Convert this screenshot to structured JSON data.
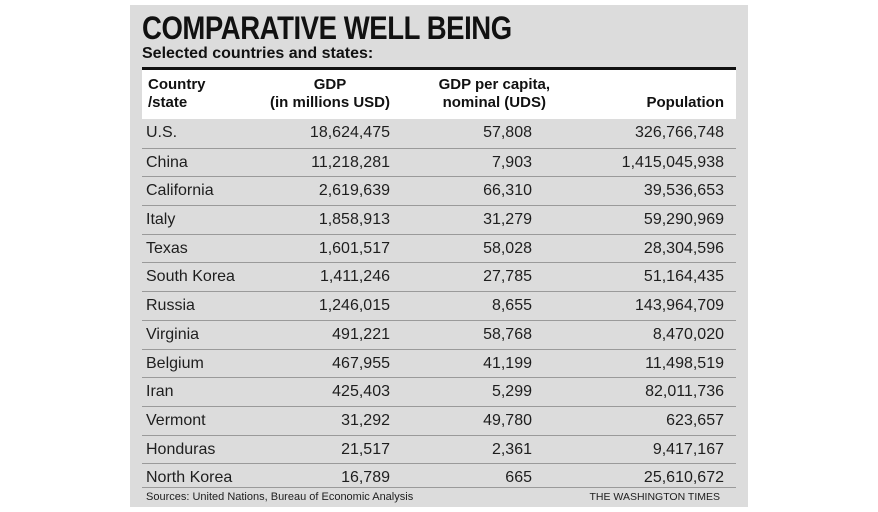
{
  "title": "COMPARATIVE WELL BEING",
  "subtitle": "Selected countries and states:",
  "columns": {
    "country": [
      "Country",
      "/state"
    ],
    "gdp": [
      "GDP",
      "(in millions USD)"
    ],
    "gdp_per_capita": [
      "GDP per capita,",
      "nominal (UDS)"
    ],
    "population": "Population"
  },
  "rows": [
    {
      "name": "U.S.",
      "gdp": "18,624,475",
      "gdp_per_capita": "57,808",
      "population": "326,766,748"
    },
    {
      "name": "China",
      "gdp": "11,218,281",
      "gdp_per_capita": "7,903",
      "population": "1,415,045,938"
    },
    {
      "name": "California",
      "gdp": "2,619,639",
      "gdp_per_capita": "66,310",
      "population": "39,536,653"
    },
    {
      "name": "Italy",
      "gdp": "1,858,913",
      "gdp_per_capita": "31,279",
      "population": "59,290,969"
    },
    {
      "name": "Texas",
      "gdp": "1,601,517",
      "gdp_per_capita": "58,028",
      "population": "28,304,596"
    },
    {
      "name": "South Korea",
      "gdp": "1,411,246",
      "gdp_per_capita": "27,785",
      "population": "51,164,435"
    },
    {
      "name": "Russia",
      "gdp": "1,246,015",
      "gdp_per_capita": "8,655",
      "population": "143,964,709"
    },
    {
      "name": "Virginia",
      "gdp": "491,221",
      "gdp_per_capita": "58,768",
      "population": "8,470,020"
    },
    {
      "name": "Belgium",
      "gdp": "467,955",
      "gdp_per_capita": "41,199",
      "population": "11,498,519"
    },
    {
      "name": "Iran",
      "gdp": "425,403",
      "gdp_per_capita": "5,299",
      "population": "82,011,736"
    },
    {
      "name": "Vermont",
      "gdp": "31,292",
      "gdp_per_capita": "49,780",
      "population": "623,657"
    },
    {
      "name": "Honduras",
      "gdp": "21,517",
      "gdp_per_capita": "2,361",
      "population": "9,417,167"
    },
    {
      "name": "North Korea",
      "gdp": "16,789",
      "gdp_per_capita": "665",
      "population": "25,610,672"
    }
  ],
  "footer": {
    "source": "Sources: United Nations, Bureau of Economic Analysis",
    "credit": "THE WASHINGTON TIMES"
  }
}
